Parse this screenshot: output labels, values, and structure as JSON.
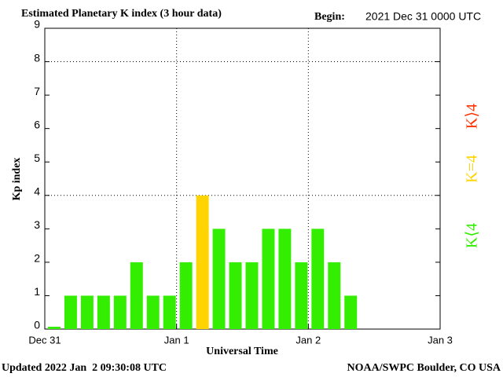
{
  "chart_data": {
    "type": "bar",
    "title": "Estimated Planetary K index (3 hour data)",
    "begin_label": "Begin:",
    "begin_value": "2021 Dec 31 0000 UTC",
    "ylabel": "Kp index",
    "xlabel": "Universal Time",
    "updated": "Updated 2022 Jan  2 09:30:08 UTC",
    "source": "NOAA/SWPC Boulder, CO USA",
    "x": [
      0,
      3,
      6,
      9,
      12,
      15,
      18,
      21,
      24,
      27,
      30,
      33,
      36,
      39,
      42,
      45,
      48,
      51,
      54
    ],
    "values": [
      0,
      1,
      1,
      1,
      1,
      2,
      1,
      1,
      2,
      4,
      3,
      2,
      2,
      3,
      3,
      2,
      3,
      2,
      1
    ],
    "bar_hours": 3,
    "xlim": [
      0,
      72
    ],
    "xticks": [
      {
        "value": 0,
        "label": "Dec 31"
      },
      {
        "value": 24,
        "label": "Jan 1"
      },
      {
        "value": 48,
        "label": "Jan 2"
      },
      {
        "value": 72,
        "label": "Jan 3"
      }
    ],
    "ylim": [
      0,
      9
    ],
    "yticks": [
      0,
      1,
      2,
      3,
      4,
      5,
      6,
      7,
      8,
      9
    ],
    "ygrid": [
      4,
      8
    ],
    "xgrid": [
      24,
      48
    ],
    "threshold": 4,
    "legend": [
      {
        "label": "K⟨4",
        "color": "#33ee00"
      },
      {
        "label": "K=4",
        "color": "#ffd400"
      },
      {
        "label": "K⟩4",
        "color": "#ff3300"
      }
    ]
  }
}
